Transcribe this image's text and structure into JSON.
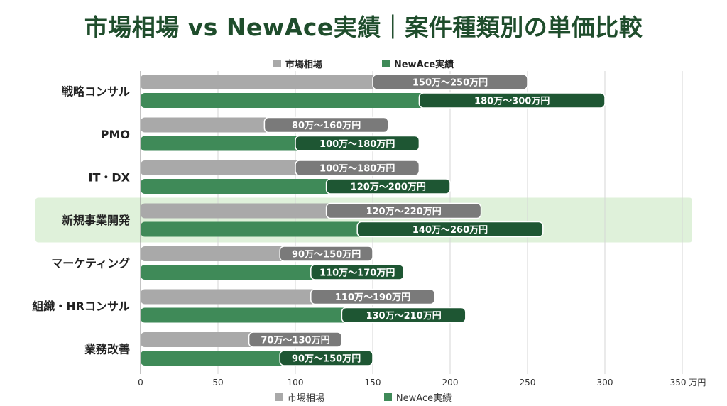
{
  "title": "市場相場 vs NewAce実績｜案件種類別の単価比較",
  "legend": {
    "market": "市場相場",
    "newace": "NewAce実績"
  },
  "colors": {
    "market_light": "#a9a9a9",
    "market_dark": "#7a7a7a",
    "newace_light": "#3f8a58",
    "newace_dark": "#1e5633",
    "highlight": "#dcefd6",
    "title": "#1f4d2c"
  },
  "chart_data": {
    "type": "bar",
    "orientation": "horizontal",
    "title": "市場相場 vs NewAce実績｜案件種類別の単価比較",
    "xlabel": "",
    "x_unit": "万円",
    "xlim": [
      0,
      350
    ],
    "xticks": [
      0,
      50,
      100,
      150,
      200,
      250,
      300,
      350
    ],
    "grid": true,
    "legend_position": "top and bottom",
    "categories": [
      "戦略コンサル",
      "PMO",
      "IT・DX",
      "新規事業開発",
      "マーケティング",
      "組織・HRコンサル",
      "業務改善"
    ],
    "highlighted_category": "新規事業開発",
    "series": [
      {
        "name": "市場相場",
        "min": [
          150,
          80,
          100,
          120,
          90,
          110,
          70
        ],
        "max": [
          250,
          160,
          180,
          220,
          150,
          190,
          130
        ],
        "labels": [
          "150万～250万円",
          "80万～160万円",
          "100万～180万円",
          "120万～220万円",
          "90万～150万円",
          "110万～190万円",
          "70万～130万円"
        ]
      },
      {
        "name": "NewAce実績",
        "min": [
          180,
          100,
          120,
          140,
          110,
          130,
          90
        ],
        "max": [
          300,
          180,
          200,
          260,
          170,
          210,
          150
        ],
        "labels": [
          "180万～300万円",
          "100万～180万円",
          "120万～200万円",
          "140万～260万円",
          "110万～170万円",
          "130万～210万円",
          "90万～150万円"
        ]
      }
    ]
  }
}
